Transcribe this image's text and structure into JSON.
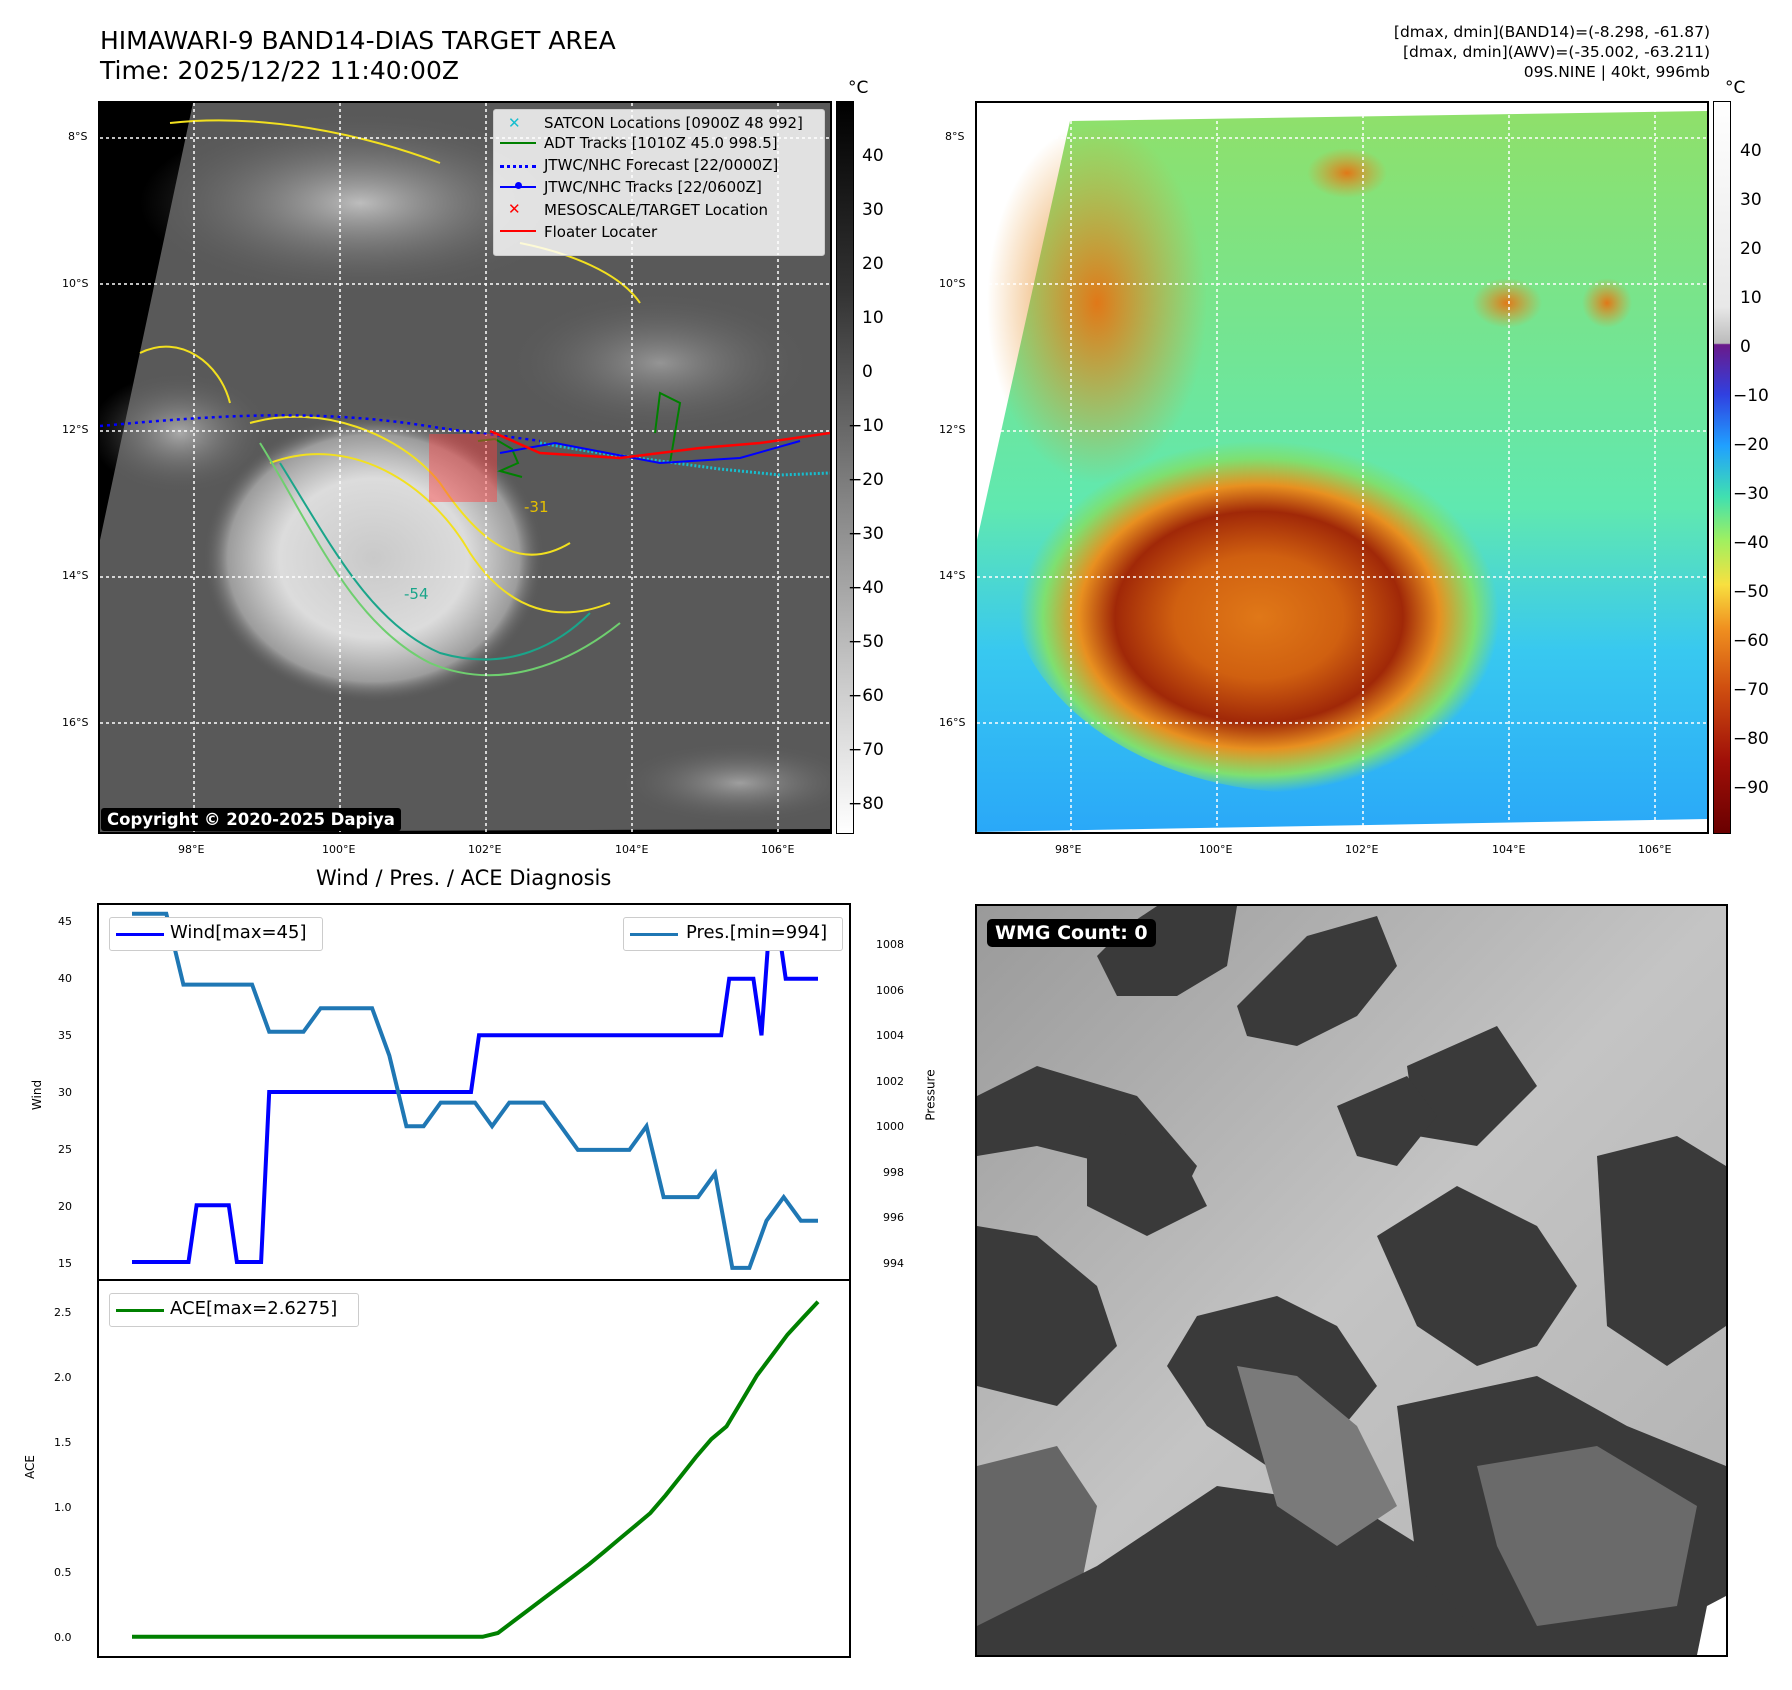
{
  "header": {
    "title": "HIMAWARI-9 BAND14-DIAS TARGET AREA",
    "time": "Time: 2025/12/22 11:40:00Z",
    "info_line1": "[dmax, dmin](BAND14)=(-8.298, -61.87)",
    "info_line2": "[dmax, dmin](AWV)=(-35.002, -63.211)",
    "info_line3": "09S.NINE | 40kt, 996mb"
  },
  "map": {
    "lat_labels": [
      "8°S",
      "10°S",
      "12°S",
      "14°S",
      "16°S"
    ],
    "lon_labels": [
      "98°E",
      "100°E",
      "102°E",
      "104°E",
      "106°E"
    ],
    "colorbar_unit": "°C",
    "ir_colorbar_ticks": [
      "40",
      "30",
      "20",
      "10",
      "0",
      "−10",
      "−20",
      "−30",
      "−40",
      "−50",
      "−60",
      "−70",
      "−80"
    ],
    "color_colorbar_ticks": [
      "40",
      "30",
      "20",
      "10",
      "0",
      "−10",
      "−20",
      "−30",
      "−40",
      "−50",
      "−60",
      "−70",
      "−80",
      "−90"
    ],
    "contour_labels": [
      "-31",
      "-54"
    ],
    "copyright": "Copyright © 2020-2025 Dapiya",
    "legend": [
      {
        "label": "SATCON Locations [0900Z 48 992]",
        "color": "#17becf"
      },
      {
        "label": "ADT Tracks [1010Z 45.0 998.5]",
        "color": "#008000"
      },
      {
        "label": "JTWC/NHC Forecast [22/0000Z]",
        "color": "#0000ff"
      },
      {
        "label": "JTWC/NHC Tracks [22/0600Z]",
        "color": "#0000ff"
      },
      {
        "label": "MESOSCALE/TARGET Location",
        "color": "#ff0000"
      },
      {
        "label": "Floater Locater",
        "color": "#ff0000"
      }
    ]
  },
  "diagnosis": {
    "title": "Wind / Pres. / ACE Diagnosis",
    "wind_label": "Wind",
    "pressure_label": "Pressure",
    "ace_label": "ACE",
    "wind_legend": "Wind[max=45]",
    "pres_legend": "Pres.[min=994]",
    "ace_legend": "ACE[max=2.6275]",
    "wind_ticks": [
      "45",
      "40",
      "35",
      "30",
      "25",
      "20",
      "15"
    ],
    "pressure_ticks": [
      "1008",
      "1006",
      "1004",
      "1002",
      "1000",
      "998",
      "996",
      "994"
    ],
    "ace_ticks": [
      "2.5",
      "2.0",
      "1.5",
      "1.0",
      "0.5",
      "0.0"
    ]
  },
  "wmg": {
    "label": "WMG Count: 0"
  },
  "chart_data": [
    {
      "type": "line",
      "title": "Wind / Pres. / ACE Diagnosis",
      "ylabel": "Wind",
      "ylim": [
        15,
        45
      ],
      "series": [
        {
          "name": "Wind[max=45]",
          "color": "#0000ff",
          "values": [
            15,
            15,
            15,
            15,
            15,
            15,
            15,
            15,
            20,
            20,
            20,
            20,
            20,
            15,
            15,
            15,
            15,
            30,
            30,
            30,
            30,
            30,
            30,
            30,
            30,
            30,
            30,
            30,
            30,
            30,
            30,
            30,
            30,
            30,
            30,
            30,
            30,
            30,
            30,
            30,
            30,
            30,
            30,
            35,
            35,
            35,
            35,
            35,
            35,
            35,
            35,
            35,
            35,
            35,
            35,
            35,
            35,
            35,
            35,
            35,
            35,
            35,
            35,
            35,
            35,
            35,
            35,
            35,
            35,
            35,
            35,
            35,
            35,
            35,
            40,
            40,
            40,
            40,
            35,
            45,
            45,
            40,
            40,
            40,
            40,
            40
          ]
        }
      ]
    },
    {
      "type": "line",
      "ylabel": "Pressure",
      "ylim": [
        993.7,
        1009.2
      ],
      "series": [
        {
          "name": "Pres.[min=994]",
          "color": "#1f77b4",
          "values": [
            1009,
            1009,
            1009,
            1006,
            1006,
            1006,
            1006,
            1006,
            1004,
            1004,
            1004,
            1005,
            1005,
            1005,
            1005,
            1003,
            1000,
            1000,
            1001,
            1001,
            1001,
            1000,
            1001,
            1001,
            1001,
            1000,
            999,
            999,
            999,
            999,
            1000,
            997,
            997,
            997,
            998,
            994,
            994,
            996,
            997,
            996,
            996
          ]
        }
      ]
    },
    {
      "type": "line",
      "ylabel": "ACE",
      "ylim": [
        -0.08,
        2.72
      ],
      "series": [
        {
          "name": "ACE[max=2.6275]",
          "color": "#008000",
          "values": [
            0,
            0,
            0,
            0,
            0,
            0,
            0,
            0,
            0,
            0,
            0,
            0,
            0,
            0,
            0,
            0,
            0,
            0,
            0,
            0,
            0,
            0,
            0,
            0,
            0.03,
            0.12,
            0.21,
            0.3,
            0.39,
            0.48,
            0.57,
            0.67,
            0.77,
            0.87,
            0.97,
            1.11,
            1.26,
            1.41,
            1.55,
            1.65,
            1.85,
            2.05,
            2.21,
            2.37,
            2.5,
            2.6275
          ]
        }
      ]
    }
  ]
}
